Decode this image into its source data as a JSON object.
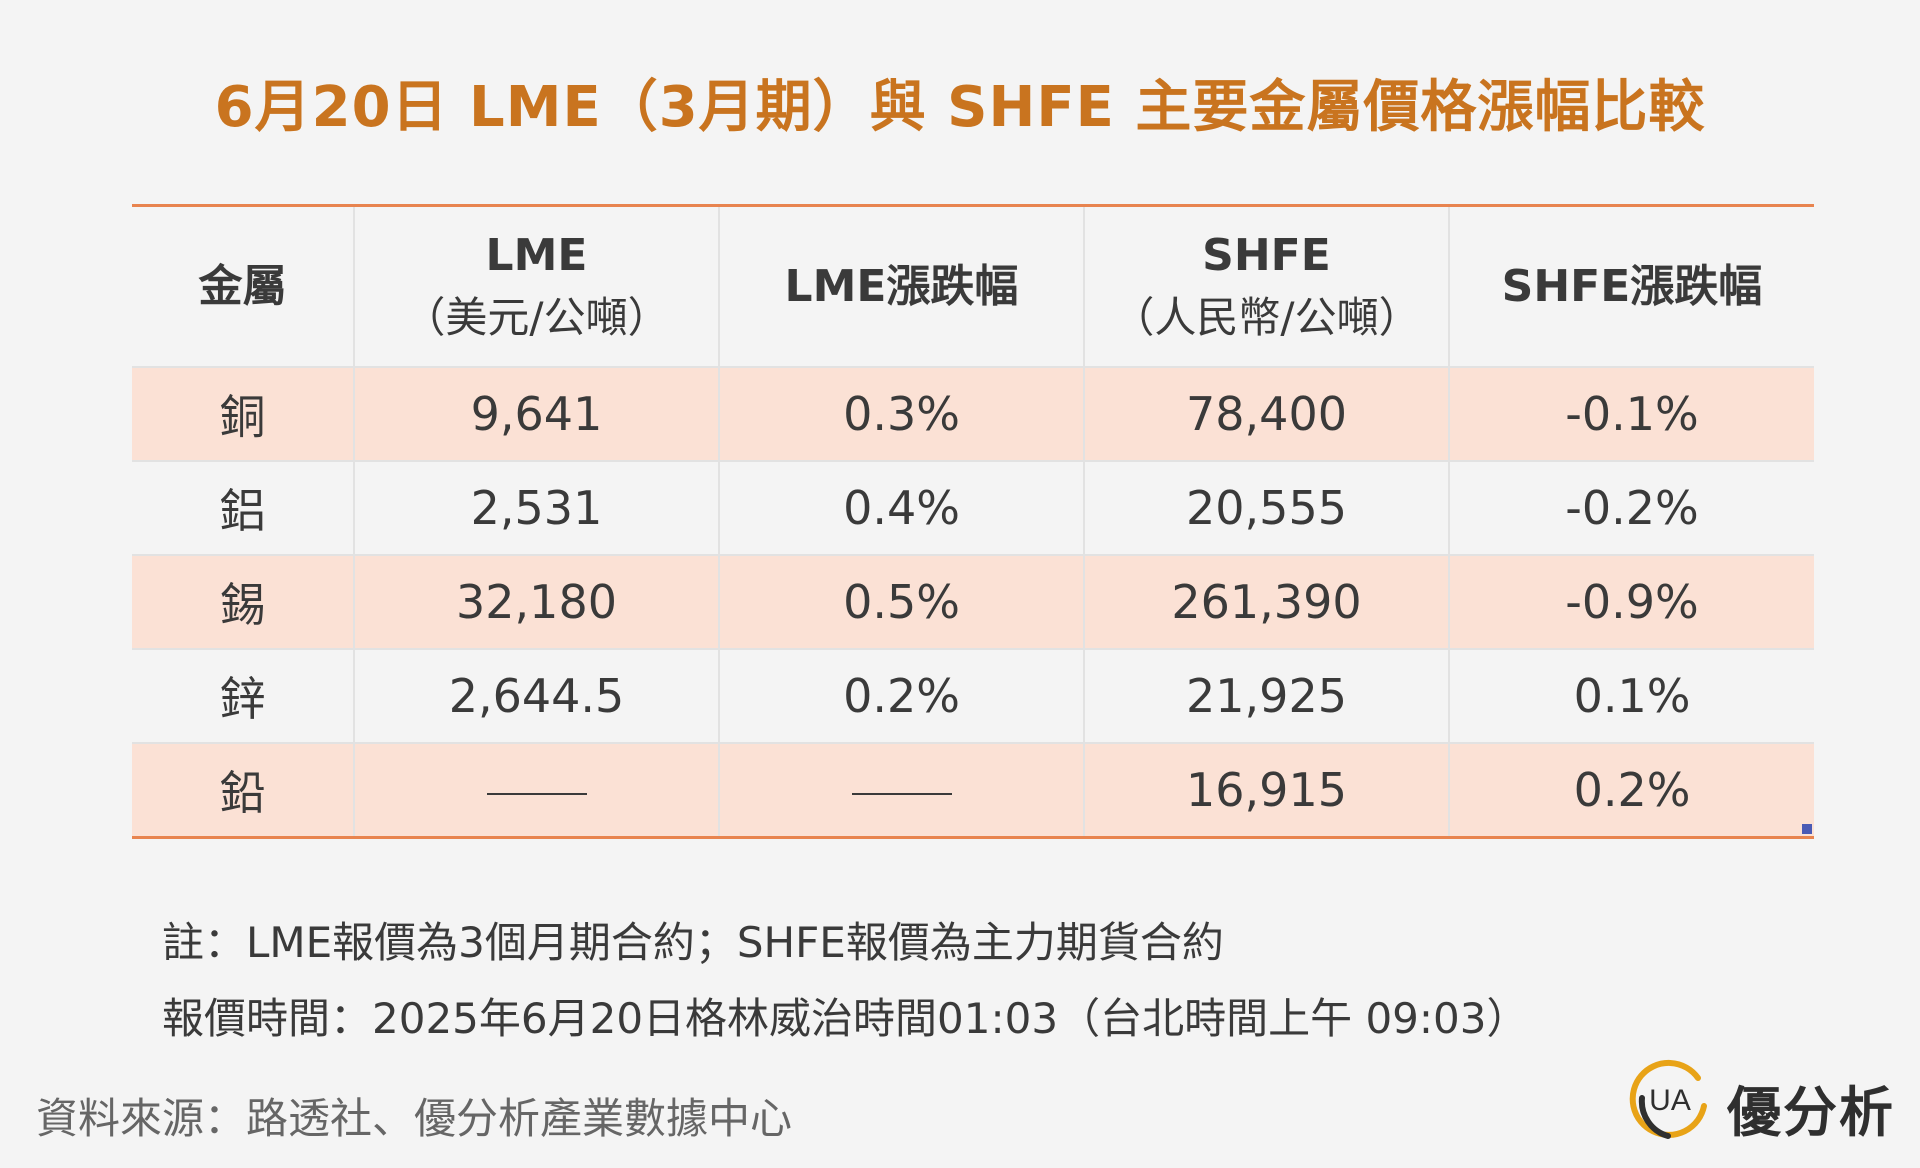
{
  "title": "6月20日 LME（3月期）與 SHFE 主要金屬價格漲幅比較",
  "table": {
    "headers": [
      {
        "main": "金屬",
        "sub": ""
      },
      {
        "main": "LME",
        "sub": "（美元/公噸）"
      },
      {
        "main": "LME漲跌幅",
        "sub": ""
      },
      {
        "main": "SHFE",
        "sub": "（人民幣/公噸）"
      },
      {
        "main": "SHFE漲跌幅",
        "sub": ""
      }
    ],
    "rows": [
      {
        "metal": "銅",
        "lme": "9,641",
        "lme_change": "0.3%",
        "shfe": "78,400",
        "shfe_change": "-0.1%"
      },
      {
        "metal": "鋁",
        "lme": "2,531",
        "lme_change": "0.4%",
        "shfe": "20,555",
        "shfe_change": "-0.2%"
      },
      {
        "metal": "錫",
        "lme": "32,180",
        "lme_change": "0.5%",
        "shfe": "261,390",
        "shfe_change": "-0.9%"
      },
      {
        "metal": "鋅",
        "lme": "2,644.5",
        "lme_change": "0.2%",
        "shfe": "21,925",
        "shfe_change": "0.1%"
      },
      {
        "metal": "鉛",
        "lme": "",
        "lme_change": "",
        "shfe": "16,915",
        "shfe_change": "0.2%"
      }
    ]
  },
  "notes": [
    "註：LME報價為3個月期合約；SHFE報價為主力期貨合約",
    "報價時間：2025年6月20日格林威治時間01:03（台北時間上午 09:03）"
  ],
  "source": "資料來源：路透社、優分析產業數據中心",
  "brand": {
    "name": "優分析",
    "logo_letters": "UA",
    "colors": {
      "logo_ring": "#e8a317",
      "logo_dark": "#2f2f2f"
    }
  },
  "colors": {
    "title": "#c9741f",
    "table_border": "#e8844f",
    "row_shade": "#fbe1d5",
    "background": "#f4f4f4"
  }
}
